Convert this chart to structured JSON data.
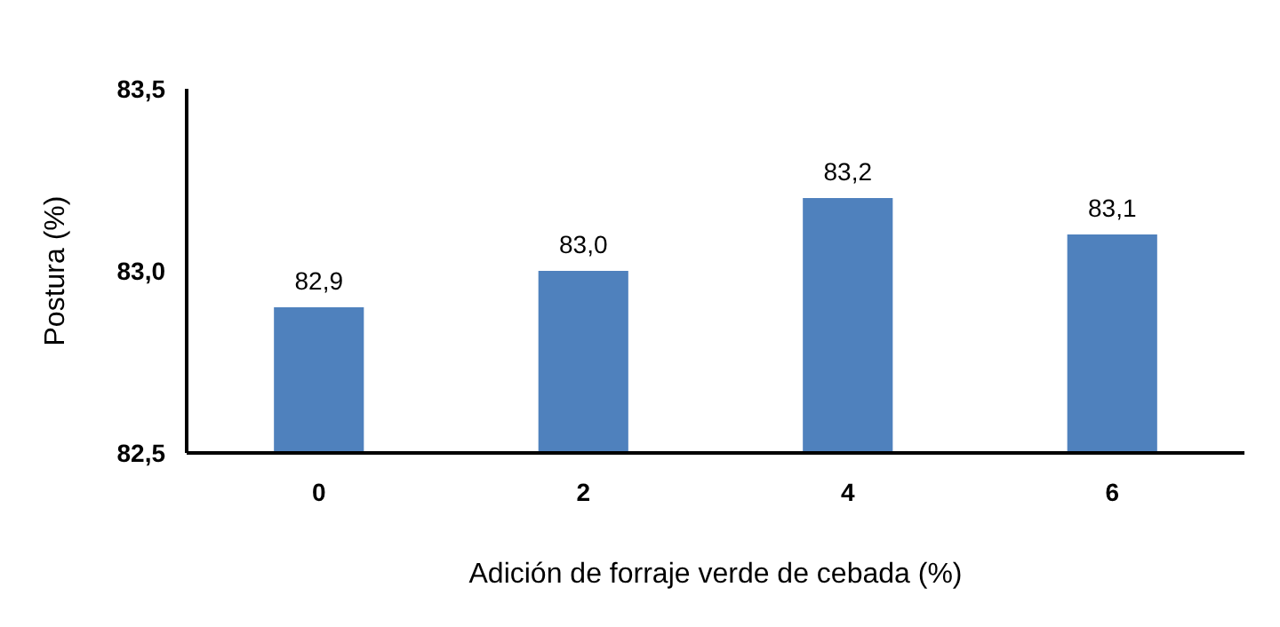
{
  "chart_data": {
    "type": "bar",
    "xlabel": "Adición de forraje verde de cebada (%)",
    "ylabel": "Postura (%)",
    "categories": [
      "0",
      "2",
      "4",
      "6"
    ],
    "values": [
      82.9,
      83.0,
      83.2,
      83.1
    ],
    "value_labels": [
      "82,9",
      "83,0",
      "83,2",
      "83,1"
    ],
    "color": "#4f81bd",
    "ylim": [
      82.5,
      83.5
    ],
    "yticks": [
      {
        "value": 82.5,
        "label": "82,5"
      },
      {
        "value": 83.0,
        "label": "83,0"
      },
      {
        "value": 83.5,
        "label": "83,5"
      }
    ],
    "grid": false
  }
}
